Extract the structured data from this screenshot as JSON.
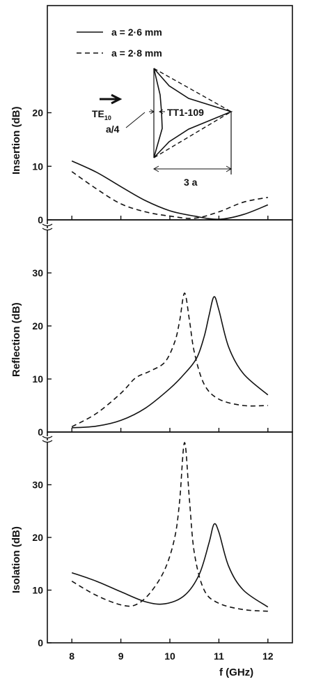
{
  "chart_data": [
    {
      "type": "line",
      "ylabel": "Insertion (dB)",
      "xlim": [
        7.5,
        12.5
      ],
      "ylim": [
        0,
        40
      ],
      "yticks": [
        0,
        10,
        20
      ],
      "ytick_labels": [
        "0",
        "10",
        "20"
      ],
      "legend": {
        "placement": "top-left",
        "entries": [
          {
            "label": "a = 2·6  mm",
            "style": "solid"
          },
          {
            "label": "a = 2·8  mm",
            "style": "dashed"
          }
        ]
      },
      "series": [
        {
          "style": "solid",
          "points": [
            [
              8,
              11
            ],
            [
              8.5,
              8.9
            ],
            [
              9,
              6.2
            ],
            [
              9.5,
              3.6
            ],
            [
              10,
              1.7
            ],
            [
              10.5,
              0.7
            ],
            [
              11,
              0.1
            ],
            [
              11.5,
              1.0
            ],
            [
              12,
              2.8
            ]
          ]
        },
        {
          "style": "dashed",
          "points": [
            [
              8,
              9
            ],
            [
              8.5,
              5.8
            ],
            [
              9,
              3.0
            ],
            [
              9.5,
              1.5
            ],
            [
              10,
              0.7
            ],
            [
              10.5,
              0.3
            ],
            [
              11,
              1.5
            ],
            [
              11.5,
              3.3
            ],
            [
              12,
              4.2
            ]
          ]
        }
      ],
      "inset": {
        "wave_label": "TE",
        "wave_subscript": "10",
        "material_label": "TT1-109",
        "offset_label": "a/4",
        "width_label": "3 a"
      }
    },
    {
      "type": "line",
      "ylabel": "Reflection (dB)",
      "xlim": [
        7.5,
        12.5
      ],
      "ylim": [
        0,
        40
      ],
      "yticks": [
        0,
        10,
        20,
        30
      ],
      "ytick_labels": [
        "0",
        "10",
        "20",
        "30"
      ],
      "series": [
        {
          "style": "solid",
          "points": [
            [
              8,
              0.8
            ],
            [
              8.5,
              1.1
            ],
            [
              9,
              2.2
            ],
            [
              9.5,
              4.5
            ],
            [
              10,
              8.2
            ],
            [
              10.3,
              11
            ],
            [
              10.55,
              14
            ],
            [
              10.7,
              18
            ],
            [
              10.8,
              22
            ],
            [
              10.9,
              25.5
            ],
            [
              11,
              23
            ],
            [
              11.2,
              16
            ],
            [
              11.5,
              11
            ],
            [
              12,
              7
            ]
          ]
        },
        {
          "style": "dashed",
          "points": [
            [
              8,
              1
            ],
            [
              8.5,
              3.5
            ],
            [
              9,
              7.3
            ],
            [
              9.3,
              10.2
            ],
            [
              9.6,
              11.5
            ],
            [
              9.9,
              13.2
            ],
            [
              10.1,
              17
            ],
            [
              10.2,
              21
            ],
            [
              10.3,
              26.2
            ],
            [
              10.4,
              21
            ],
            [
              10.5,
              15
            ],
            [
              10.7,
              9
            ],
            [
              11,
              6.2
            ],
            [
              11.5,
              5
            ],
            [
              12,
              5
            ]
          ]
        }
      ]
    },
    {
      "type": "line",
      "ylabel": "Isolation (dB)",
      "xlabel": "f (GHz)",
      "xlim": [
        7.5,
        12.5
      ],
      "ylim": [
        0,
        40
      ],
      "xticks": [
        8,
        9,
        10,
        11,
        12
      ],
      "xtick_labels": [
        "8",
        "9",
        "10",
        "11",
        "12"
      ],
      "yticks": [
        0,
        10,
        20,
        30
      ],
      "ytick_labels": [
        "0",
        "10",
        "20",
        "30"
      ],
      "series": [
        {
          "style": "solid",
          "points": [
            [
              8,
              13.3
            ],
            [
              8.5,
              11.7
            ],
            [
              9,
              9.7
            ],
            [
              9.5,
              7.8
            ],
            [
              9.9,
              7.4
            ],
            [
              10.3,
              9
            ],
            [
              10.6,
              13
            ],
            [
              10.8,
              19
            ],
            [
              10.9,
              22.5
            ],
            [
              11,
              21
            ],
            [
              11.2,
              14.5
            ],
            [
              11.5,
              10
            ],
            [
              12,
              6.8
            ]
          ]
        },
        {
          "style": "dashed",
          "points": [
            [
              8,
              11.7
            ],
            [
              8.5,
              9
            ],
            [
              9,
              7.2
            ],
            [
              9.3,
              7.2
            ],
            [
              9.6,
              9.5
            ],
            [
              9.9,
              14
            ],
            [
              10.1,
              20
            ],
            [
              10.2,
              27
            ],
            [
              10.3,
              38
            ],
            [
              10.4,
              27
            ],
            [
              10.5,
              17
            ],
            [
              10.7,
              10
            ],
            [
              11,
              7.5
            ],
            [
              11.5,
              6.3
            ],
            [
              12,
              6
            ]
          ]
        }
      ]
    }
  ]
}
